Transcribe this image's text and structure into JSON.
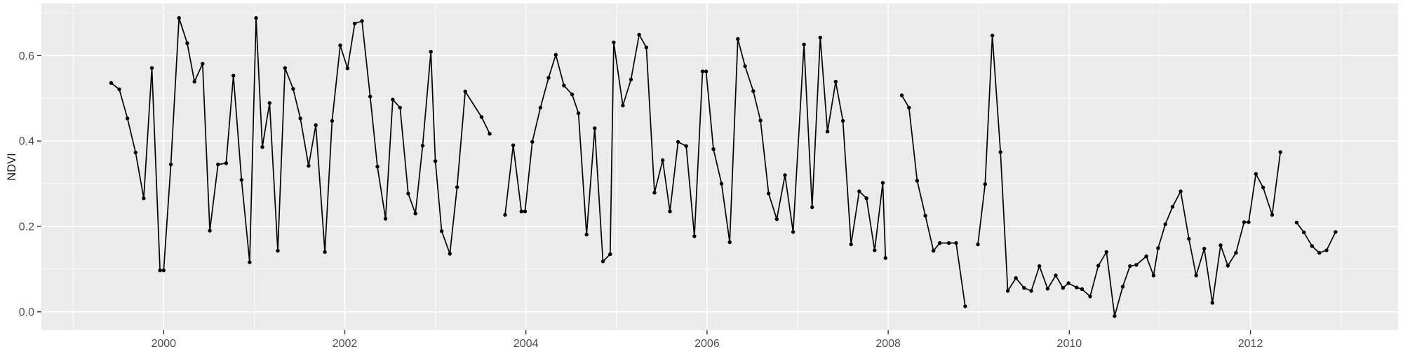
{
  "figure": {
    "kind": "ggplot-style time series",
    "colors": {
      "outer_background": "#FFFFFF",
      "panel_background": "#EBEBEB",
      "gridline": "#FFFFFF",
      "series_line": "#000000",
      "series_point": "#000000",
      "tick_mark": "#333333",
      "tick_label": "#4D4D4D",
      "axis_title": "#1A1A1A"
    }
  },
  "chart_data": {
    "type": "line",
    "title": "",
    "xlabel": "",
    "ylabel": "NDVI",
    "legend_position": "none",
    "grid": "major+minor",
    "marker": "filled-circle",
    "xlim": [
      1998.65,
      2013.63
    ],
    "ylim": [
      -0.043,
      0.722
    ],
    "x_ticks": [
      2000,
      2002,
      2004,
      2006,
      2008,
      2010,
      2012
    ],
    "x_tick_labels": [
      "2000",
      "2002",
      "2004",
      "2006",
      "2008",
      "2010",
      "2012"
    ],
    "x_minor_gridlines": [
      1999,
      2001,
      2003,
      2005,
      2007,
      2009,
      2011,
      2013
    ],
    "y_ticks": [
      0.0,
      0.2,
      0.4,
      0.6
    ],
    "y_tick_labels": [
      "0.0",
      "0.2",
      "0.4",
      "0.6"
    ],
    "y_minor_gridlines": [
      0.1,
      0.3,
      0.5,
      0.7
    ],
    "series_name": "NDVI",
    "segments": [
      [
        [
          1999.42,
          0.536
        ],
        [
          1999.51,
          0.521
        ],
        [
          1999.6,
          0.453
        ],
        [
          1999.69,
          0.373
        ],
        [
          1999.78,
          0.266
        ],
        [
          1999.87,
          0.571
        ],
        [
          1999.96,
          0.097
        ],
        [
          2000.0,
          0.097
        ],
        [
          2000.08,
          0.345
        ],
        [
          2000.17,
          0.688
        ],
        [
          2000.26,
          0.629
        ],
        [
          2000.34,
          0.539
        ],
        [
          2000.43,
          0.581
        ],
        [
          2000.51,
          0.19
        ],
        [
          2000.6,
          0.345
        ],
        [
          2000.69,
          0.348
        ],
        [
          2000.77,
          0.553
        ],
        [
          2000.86,
          0.309
        ],
        [
          2000.95,
          0.116
        ],
        [
          2001.02,
          0.688
        ],
        [
          2001.09,
          0.386
        ],
        [
          2001.17,
          0.489
        ],
        [
          2001.26,
          0.143
        ],
        [
          2001.34,
          0.571
        ],
        [
          2001.43,
          0.522
        ],
        [
          2001.51,
          0.453
        ],
        [
          2001.6,
          0.342
        ],
        [
          2001.68,
          0.437
        ],
        [
          2001.78,
          0.14
        ],
        [
          2001.86,
          0.447
        ],
        [
          2001.95,
          0.624
        ],
        [
          2002.03,
          0.57
        ],
        [
          2002.11,
          0.675
        ],
        [
          2002.19,
          0.681
        ],
        [
          2002.28,
          0.504
        ],
        [
          2002.36,
          0.34
        ],
        [
          2002.45,
          0.218
        ],
        [
          2002.53,
          0.497
        ],
        [
          2002.61,
          0.478
        ],
        [
          2002.7,
          0.277
        ],
        [
          2002.78,
          0.23
        ],
        [
          2002.86,
          0.389
        ],
        [
          2002.95,
          0.609
        ],
        [
          2003.0,
          0.353
        ],
        [
          2003.07,
          0.189
        ],
        [
          2003.16,
          0.136
        ],
        [
          2003.24,
          0.292
        ],
        [
          2003.33,
          0.516
        ],
        [
          2003.51,
          0.456
        ],
        [
          2003.6,
          0.417
        ]
      ],
      [
        [
          2003.77,
          0.227
        ],
        [
          2003.86,
          0.39
        ],
        [
          2003.95,
          0.235
        ],
        [
          2003.99,
          0.235
        ],
        [
          2004.07,
          0.398
        ],
        [
          2004.16,
          0.478
        ],
        [
          2004.25,
          0.548
        ],
        [
          2004.33,
          0.602
        ],
        [
          2004.42,
          0.53
        ],
        [
          2004.51,
          0.509
        ],
        [
          2004.58,
          0.465
        ],
        [
          2004.67,
          0.181
        ],
        [
          2004.76,
          0.43
        ],
        [
          2004.85,
          0.118
        ],
        [
          2004.93,
          0.135
        ],
        [
          2004.97,
          0.631
        ],
        [
          2005.07,
          0.483
        ],
        [
          2005.16,
          0.544
        ],
        [
          2005.25,
          0.649
        ],
        [
          2005.33,
          0.619
        ],
        [
          2005.42,
          0.279
        ],
        [
          2005.51,
          0.355
        ],
        [
          2005.59,
          0.235
        ],
        [
          2005.68,
          0.398
        ],
        [
          2005.77,
          0.388
        ],
        [
          2005.86,
          0.177
        ],
        [
          2005.95,
          0.563
        ],
        [
          2005.99,
          0.563
        ],
        [
          2006.07,
          0.381
        ],
        [
          2006.16,
          0.3
        ],
        [
          2006.25,
          0.163
        ],
        [
          2006.34,
          0.639
        ],
        [
          2006.42,
          0.575
        ],
        [
          2006.51,
          0.517
        ],
        [
          2006.59,
          0.448
        ],
        [
          2006.68,
          0.277
        ],
        [
          2006.77,
          0.217
        ],
        [
          2006.86,
          0.32
        ],
        [
          2006.95,
          0.187
        ],
        [
          2007.07,
          0.626
        ],
        [
          2007.16,
          0.245
        ],
        [
          2007.25,
          0.642
        ],
        [
          2007.33,
          0.422
        ],
        [
          2007.42,
          0.539
        ],
        [
          2007.5,
          0.447
        ],
        [
          2007.59,
          0.158
        ],
        [
          2007.68,
          0.282
        ],
        [
          2007.76,
          0.266
        ],
        [
          2007.85,
          0.144
        ],
        [
          2007.94,
          0.302
        ],
        [
          2007.97,
          0.126
        ]
      ],
      [
        [
          2008.15,
          0.507
        ],
        [
          2008.23,
          0.478
        ],
        [
          2008.32,
          0.307
        ],
        [
          2008.41,
          0.225
        ],
        [
          2008.5,
          0.143
        ],
        [
          2008.57,
          0.161
        ],
        [
          2008.67,
          0.161
        ],
        [
          2008.75,
          0.161
        ],
        [
          2008.85,
          0.013
        ]
      ],
      [
        [
          2008.99,
          0.158
        ],
        [
          2009.07,
          0.299
        ],
        [
          2009.15,
          0.647
        ],
        [
          2009.24,
          0.374
        ],
        [
          2009.32,
          0.049
        ],
        [
          2009.41,
          0.079
        ],
        [
          2009.5,
          0.056
        ],
        [
          2009.58,
          0.049
        ],
        [
          2009.67,
          0.107
        ],
        [
          2009.76,
          0.054
        ],
        [
          2009.85,
          0.085
        ],
        [
          2009.93,
          0.056
        ],
        [
          2009.99,
          0.067
        ],
        [
          2010.08,
          0.057
        ],
        [
          2010.14,
          0.053
        ],
        [
          2010.23,
          0.036
        ],
        [
          2010.32,
          0.108
        ],
        [
          2010.41,
          0.14
        ],
        [
          2010.5,
          -0.01
        ],
        [
          2010.59,
          0.059
        ],
        [
          2010.67,
          0.107
        ],
        [
          2010.74,
          0.11
        ],
        [
          2010.85,
          0.13
        ],
        [
          2010.93,
          0.085
        ],
        [
          2010.98,
          0.149
        ],
        [
          2011.06,
          0.205
        ],
        [
          2011.14,
          0.246
        ],
        [
          2011.23,
          0.282
        ],
        [
          2011.32,
          0.171
        ],
        [
          2011.4,
          0.085
        ],
        [
          2011.49,
          0.148
        ],
        [
          2011.58,
          0.021
        ],
        [
          2011.67,
          0.156
        ],
        [
          2011.75,
          0.108
        ],
        [
          2011.84,
          0.138
        ],
        [
          2011.93,
          0.21
        ],
        [
          2011.98,
          0.21
        ],
        [
          2012.06,
          0.323
        ],
        [
          2012.14,
          0.291
        ],
        [
          2012.24,
          0.227
        ],
        [
          2012.33,
          0.374
        ]
      ],
      [
        [
          2012.51,
          0.209
        ],
        [
          2012.59,
          0.186
        ],
        [
          2012.68,
          0.154
        ],
        [
          2012.76,
          0.138
        ],
        [
          2012.84,
          0.144
        ],
        [
          2012.94,
          0.187
        ]
      ]
    ]
  }
}
